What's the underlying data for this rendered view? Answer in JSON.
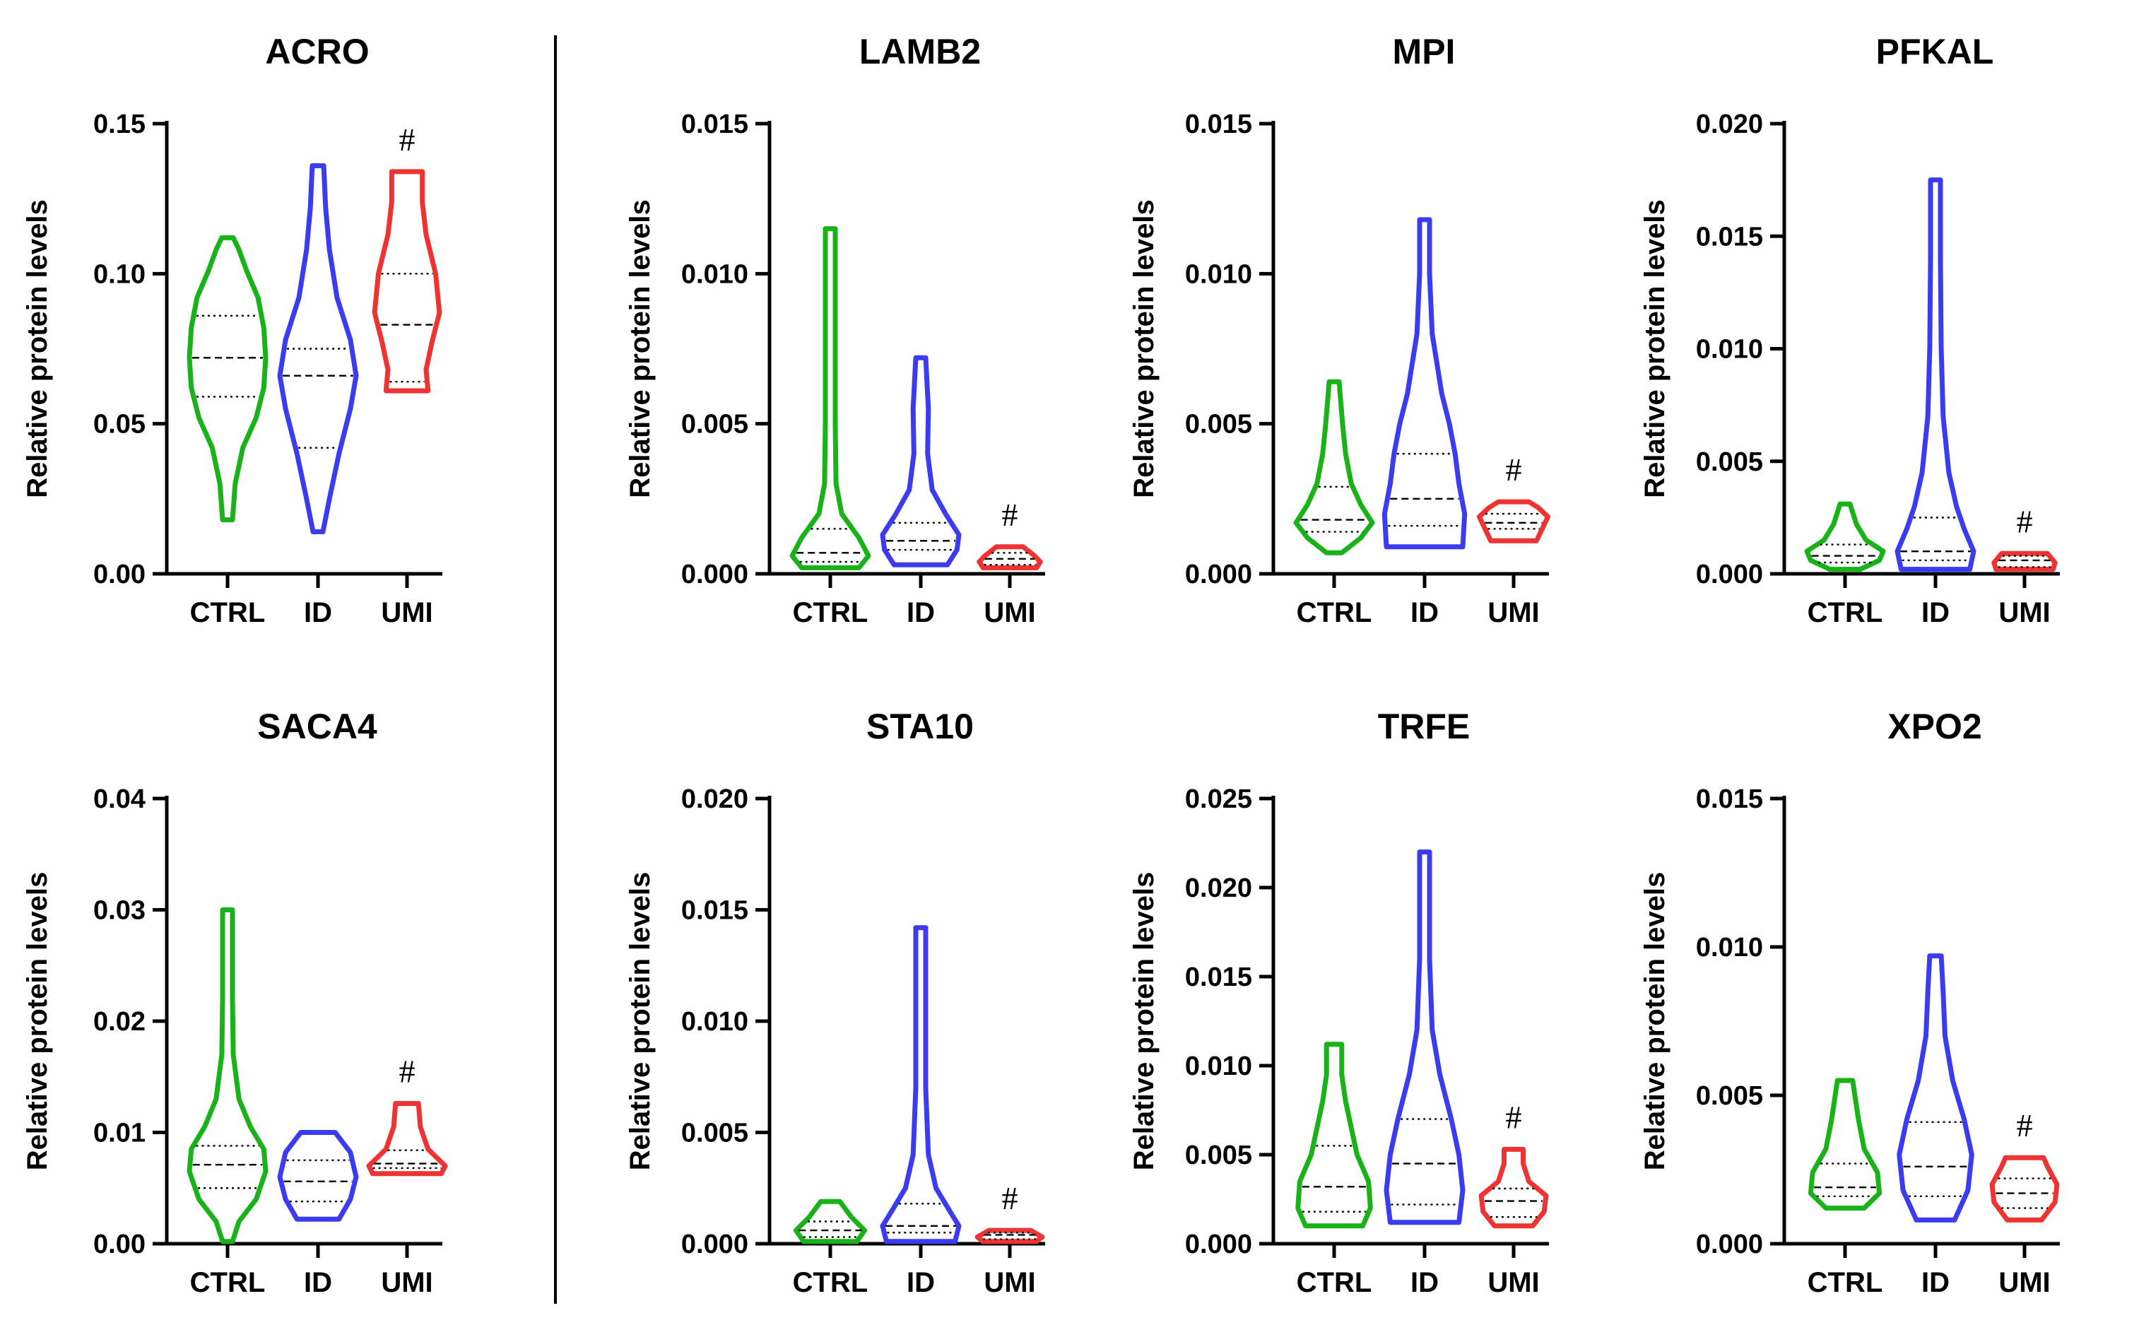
{
  "figure": {
    "separator": "vertical-line-after-first-column"
  },
  "colors": {
    "CTRL": "#19b319",
    "ID": "#3b3bf0",
    "UMI": "#ee3333"
  },
  "chart_data": [
    {
      "type": "violin",
      "title": "ACRO",
      "ylabel": "Relative protein levels",
      "ylim": [
        0,
        0.15
      ],
      "yticks": [
        "0.00",
        "0.05",
        "0.10",
        "0.15"
      ],
      "categories": [
        "CTRL",
        "ID",
        "UMI"
      ],
      "significance": {
        "category": "UMI",
        "label": "#"
      },
      "series": [
        {
          "name": "CTRL",
          "min": 0.018,
          "max": 0.112,
          "q1": 0.059,
          "median": 0.072,
          "q3": 0.086,
          "profile": [
            [
              0.018,
              0.05
            ],
            [
              0.03,
              0.2
            ],
            [
              0.042,
              0.4
            ],
            [
              0.052,
              0.75
            ],
            [
              0.062,
              0.95
            ],
            [
              0.072,
              1.0
            ],
            [
              0.082,
              0.95
            ],
            [
              0.092,
              0.8
            ],
            [
              0.101,
              0.5
            ],
            [
              0.108,
              0.3
            ],
            [
              0.112,
              0.15
            ]
          ]
        },
        {
          "name": "ID",
          "min": 0.014,
          "max": 0.136,
          "q1": 0.042,
          "median": 0.066,
          "q3": 0.075,
          "profile": [
            [
              0.014,
              0.1
            ],
            [
              0.025,
              0.3
            ],
            [
              0.04,
              0.55
            ],
            [
              0.055,
              0.85
            ],
            [
              0.066,
              1.0
            ],
            [
              0.078,
              0.85
            ],
            [
              0.092,
              0.5
            ],
            [
              0.108,
              0.3
            ],
            [
              0.122,
              0.2
            ],
            [
              0.136,
              0.15
            ]
          ]
        },
        {
          "name": "UMI",
          "min": 0.061,
          "max": 0.134,
          "q1": 0.064,
          "median": 0.083,
          "q3": 0.1,
          "profile": [
            [
              0.061,
              0.55
            ],
            [
              0.068,
              0.5
            ],
            [
              0.077,
              0.65
            ],
            [
              0.087,
              0.85
            ],
            [
              0.1,
              0.75
            ],
            [
              0.113,
              0.5
            ],
            [
              0.124,
              0.4
            ],
            [
              0.134,
              0.4
            ]
          ]
        }
      ]
    },
    {
      "type": "violin",
      "title": "LAMB2",
      "ylabel": "Relative protein levels",
      "ylim": [
        0,
        0.015
      ],
      "yticks": [
        "0.000",
        "0.005",
        "0.010",
        "0.015"
      ],
      "categories": [
        "CTRL",
        "ID",
        "UMI"
      ],
      "significance": {
        "category": "UMI",
        "label": "#"
      },
      "series": [
        {
          "name": "CTRL",
          "min": 0.0002,
          "max": 0.0115,
          "q1": 0.0004,
          "median": 0.0007,
          "q3": 0.0015,
          "profile": [
            [
              0.0002,
              0.75
            ],
            [
              0.0006,
              1.0
            ],
            [
              0.0012,
              0.75
            ],
            [
              0.002,
              0.3
            ],
            [
              0.003,
              0.15
            ],
            [
              0.005,
              0.08
            ],
            [
              0.008,
              0.06
            ],
            [
              0.0115,
              0.05
            ]
          ]
        },
        {
          "name": "ID",
          "min": 0.0003,
          "max": 0.0072,
          "q1": 0.0008,
          "median": 0.0011,
          "q3": 0.0017,
          "profile": [
            [
              0.0003,
              0.7
            ],
            [
              0.0008,
              0.95
            ],
            [
              0.0013,
              1.0
            ],
            [
              0.002,
              0.65
            ],
            [
              0.0028,
              0.3
            ],
            [
              0.004,
              0.18
            ],
            [
              0.0055,
              0.2
            ],
            [
              0.0072,
              0.1
            ]
          ]
        },
        {
          "name": "UMI",
          "min": 0.0002,
          "max": 0.0009,
          "q1": 0.0003,
          "median": 0.0005,
          "q3": 0.0007,
          "profile": [
            [
              0.0002,
              0.7
            ],
            [
              0.0004,
              0.8
            ],
            [
              0.0006,
              0.65
            ],
            [
              0.0009,
              0.35
            ]
          ]
        }
      ]
    },
    {
      "type": "violin",
      "title": "MPI",
      "ylabel": "Relative protein levels",
      "ylim": [
        0,
        0.015
      ],
      "yticks": [
        "0.000",
        "0.005",
        "0.010",
        "0.015"
      ],
      "categories": [
        "CTRL",
        "ID",
        "UMI"
      ],
      "significance": {
        "category": "UMI",
        "label": "#"
      },
      "series": [
        {
          "name": "CTRL",
          "min": 0.0007,
          "max": 0.0064,
          "q1": 0.0014,
          "median": 0.0018,
          "q3": 0.0029,
          "profile": [
            [
              0.0007,
              0.2
            ],
            [
              0.0012,
              0.7
            ],
            [
              0.0017,
              1.0
            ],
            [
              0.0023,
              0.7
            ],
            [
              0.003,
              0.45
            ],
            [
              0.004,
              0.3
            ],
            [
              0.005,
              0.22
            ],
            [
              0.0064,
              0.08
            ]
          ]
        },
        {
          "name": "ID",
          "min": 0.0009,
          "max": 0.0118,
          "q1": 0.0016,
          "median": 0.0025,
          "q3": 0.004,
          "profile": [
            [
              0.0009,
              1.0
            ],
            [
              0.002,
              1.05
            ],
            [
              0.003,
              0.9
            ],
            [
              0.004,
              0.8
            ],
            [
              0.005,
              0.65
            ],
            [
              0.006,
              0.45
            ],
            [
              0.008,
              0.2
            ],
            [
              0.01,
              0.12
            ],
            [
              0.0118,
              0.1
            ]
          ]
        },
        {
          "name": "UMI",
          "min": 0.0011,
          "max": 0.0024,
          "q1": 0.0015,
          "median": 0.0017,
          "q3": 0.002,
          "profile": [
            [
              0.0011,
              0.6
            ],
            [
              0.0015,
              0.75
            ],
            [
              0.0019,
              0.9
            ],
            [
              0.0022,
              0.65
            ],
            [
              0.0024,
              0.4
            ]
          ]
        }
      ]
    },
    {
      "type": "violin",
      "title": "PFKAL",
      "ylabel": "Relative protein levels",
      "ylim": [
        0,
        0.02
      ],
      "yticks": [
        "0.000",
        "0.005",
        "0.010",
        "0.015",
        "0.020"
      ],
      "categories": [
        "CTRL",
        "ID",
        "UMI"
      ],
      "significance": {
        "category": "UMI",
        "label": "#"
      },
      "series": [
        {
          "name": "CTRL",
          "min": 0.0002,
          "max": 0.0031,
          "q1": 0.0005,
          "median": 0.0008,
          "q3": 0.0013,
          "profile": [
            [
              0.0002,
              0.4
            ],
            [
              0.0006,
              0.9
            ],
            [
              0.001,
              1.0
            ],
            [
              0.0015,
              0.55
            ],
            [
              0.0022,
              0.3
            ],
            [
              0.0031,
              0.12
            ]
          ]
        },
        {
          "name": "ID",
          "min": 0.0002,
          "max": 0.0175,
          "q1": 0.0006,
          "median": 0.001,
          "q3": 0.0025,
          "profile": [
            [
              0.0002,
              0.9
            ],
            [
              0.001,
              1.0
            ],
            [
              0.002,
              0.75
            ],
            [
              0.003,
              0.55
            ],
            [
              0.0045,
              0.35
            ],
            [
              0.007,
              0.2
            ],
            [
              0.01,
              0.15
            ],
            [
              0.014,
              0.12
            ],
            [
              0.0175,
              0.1
            ]
          ]
        },
        {
          "name": "UMI",
          "min": 0.0002,
          "max": 0.0009,
          "q1": 0.0003,
          "median": 0.0006,
          "q3": 0.0008,
          "profile": [
            [
              0.0002,
              0.75
            ],
            [
              0.0005,
              0.8
            ],
            [
              0.0009,
              0.6
            ]
          ]
        }
      ]
    },
    {
      "type": "violin",
      "title": "SACA4",
      "ylabel": "Relative protein levels",
      "ylim": [
        0,
        0.04
      ],
      "yticks": [
        "0.00",
        "0.01",
        "0.02",
        "0.03",
        "0.04"
      ],
      "categories": [
        "CTRL",
        "ID",
        "UMI"
      ],
      "significance": {
        "category": "UMI",
        "label": "#"
      },
      "series": [
        {
          "name": "CTRL",
          "min": 0.0002,
          "max": 0.03,
          "q1": 0.005,
          "median": 0.0071,
          "q3": 0.0088,
          "profile": [
            [
              0.0002,
              0.1
            ],
            [
              0.002,
              0.3
            ],
            [
              0.004,
              0.75
            ],
            [
              0.0065,
              1.0
            ],
            [
              0.0085,
              0.95
            ],
            [
              0.0105,
              0.6
            ],
            [
              0.013,
              0.3
            ],
            [
              0.017,
              0.15
            ],
            [
              0.022,
              0.1
            ],
            [
              0.03,
              0.08
            ]
          ]
        },
        {
          "name": "ID",
          "min": 0.0022,
          "max": 0.01,
          "q1": 0.0038,
          "median": 0.0056,
          "q3": 0.0075,
          "profile": [
            [
              0.0022,
              0.55
            ],
            [
              0.004,
              0.85
            ],
            [
              0.006,
              1.0
            ],
            [
              0.0082,
              0.85
            ],
            [
              0.01,
              0.45
            ]
          ]
        },
        {
          "name": "UMI",
          "min": 0.0063,
          "max": 0.0126,
          "q1": 0.0068,
          "median": 0.0072,
          "q3": 0.0084,
          "profile": [
            [
              0.0063,
              0.9
            ],
            [
              0.007,
              1.0
            ],
            [
              0.0085,
              0.55
            ],
            [
              0.0105,
              0.35
            ],
            [
              0.0126,
              0.3
            ]
          ]
        }
      ]
    },
    {
      "type": "violin",
      "title": "STA10",
      "ylabel": "Relative protein levels",
      "ylim": [
        0,
        0.02
      ],
      "yticks": [
        "0.000",
        "0.005",
        "0.010",
        "0.015",
        "0.020"
      ],
      "categories": [
        "CTRL",
        "ID",
        "UMI"
      ],
      "significance": {
        "category": "UMI",
        "label": "#"
      },
      "series": [
        {
          "name": "CTRL",
          "min": 0.0001,
          "max": 0.0019,
          "q1": 0.0003,
          "median": 0.0006,
          "q3": 0.001,
          "profile": [
            [
              0.0001,
              0.7
            ],
            [
              0.0006,
              0.9
            ],
            [
              0.0012,
              0.55
            ],
            [
              0.0019,
              0.25
            ]
          ]
        },
        {
          "name": "ID",
          "min": 0.0001,
          "max": 0.0142,
          "q1": 0.0005,
          "median": 0.0008,
          "q3": 0.0018,
          "profile": [
            [
              0.0001,
              0.9
            ],
            [
              0.0008,
              1.0
            ],
            [
              0.0015,
              0.75
            ],
            [
              0.0025,
              0.4
            ],
            [
              0.004,
              0.2
            ],
            [
              0.007,
              0.1
            ],
            [
              0.0142,
              0.08
            ]
          ]
        },
        {
          "name": "UMI",
          "min": 0.0001,
          "max": 0.0006,
          "q1": 0.0002,
          "median": 0.0004,
          "q3": 0.0005,
          "profile": [
            [
              0.0001,
              0.7
            ],
            [
              0.0003,
              0.85
            ],
            [
              0.0006,
              0.55
            ]
          ]
        }
      ]
    },
    {
      "type": "violin",
      "title": "TRFE",
      "ylabel": "Relative protein levels",
      "ylim": [
        0,
        0.025
      ],
      "yticks": [
        "0.000",
        "0.005",
        "0.010",
        "0.015",
        "0.020",
        "0.025"
      ],
      "categories": [
        "CTRL",
        "ID",
        "UMI"
      ],
      "significance": {
        "category": "UMI",
        "label": "#"
      },
      "series": [
        {
          "name": "CTRL",
          "min": 0.001,
          "max": 0.0112,
          "q1": 0.0018,
          "median": 0.0032,
          "q3": 0.0055,
          "profile": [
            [
              0.001,
              0.75
            ],
            [
              0.002,
              0.95
            ],
            [
              0.0035,
              0.9
            ],
            [
              0.005,
              0.6
            ],
            [
              0.0065,
              0.45
            ],
            [
              0.008,
              0.3
            ],
            [
              0.0095,
              0.2
            ],
            [
              0.0112,
              0.2
            ]
          ]
        },
        {
          "name": "ID",
          "min": 0.0012,
          "max": 0.022,
          "q1": 0.0022,
          "median": 0.0045,
          "q3": 0.007,
          "profile": [
            [
              0.0012,
              0.9
            ],
            [
              0.003,
              1.0
            ],
            [
              0.005,
              0.9
            ],
            [
              0.007,
              0.7
            ],
            [
              0.0095,
              0.4
            ],
            [
              0.012,
              0.2
            ],
            [
              0.016,
              0.12
            ],
            [
              0.022,
              0.1
            ]
          ]
        },
        {
          "name": "UMI",
          "min": 0.001,
          "max": 0.0053,
          "q1": 0.0015,
          "median": 0.0024,
          "q3": 0.0031,
          "profile": [
            [
              0.001,
              0.5
            ],
            [
              0.0018,
              0.8
            ],
            [
              0.0027,
              0.85
            ],
            [
              0.0035,
              0.4
            ],
            [
              0.0045,
              0.25
            ],
            [
              0.0053,
              0.25
            ]
          ]
        }
      ]
    },
    {
      "type": "violin",
      "title": "XPO2",
      "ylabel": "Relative protein levels",
      "ylim": [
        0,
        0.015
      ],
      "yticks": [
        "0.000",
        "0.005",
        "0.010",
        "0.015"
      ],
      "categories": [
        "CTRL",
        "ID",
        "UMI"
      ],
      "significance": {
        "category": "UMI",
        "label": "#"
      },
      "series": [
        {
          "name": "CTRL",
          "min": 0.0012,
          "max": 0.0055,
          "q1": 0.0016,
          "median": 0.0019,
          "q3": 0.0027,
          "profile": [
            [
              0.0012,
              0.5
            ],
            [
              0.0017,
              0.9
            ],
            [
              0.0024,
              0.85
            ],
            [
              0.0032,
              0.5
            ],
            [
              0.0042,
              0.35
            ],
            [
              0.0055,
              0.2
            ]
          ]
        },
        {
          "name": "ID",
          "min": 0.0008,
          "max": 0.0097,
          "q1": 0.0016,
          "median": 0.0026,
          "q3": 0.0041,
          "profile": [
            [
              0.0008,
              0.5
            ],
            [
              0.0018,
              0.85
            ],
            [
              0.003,
              0.95
            ],
            [
              0.0042,
              0.75
            ],
            [
              0.0055,
              0.45
            ],
            [
              0.007,
              0.25
            ],
            [
              0.0085,
              0.2
            ],
            [
              0.0097,
              0.15
            ]
          ]
        },
        {
          "name": "UMI",
          "min": 0.0008,
          "max": 0.0029,
          "q1": 0.0012,
          "median": 0.0017,
          "q3": 0.0022,
          "profile": [
            [
              0.0008,
              0.45
            ],
            [
              0.0014,
              0.8
            ],
            [
              0.002,
              0.85
            ],
            [
              0.0026,
              0.6
            ],
            [
              0.0029,
              0.5
            ]
          ]
        }
      ]
    }
  ]
}
